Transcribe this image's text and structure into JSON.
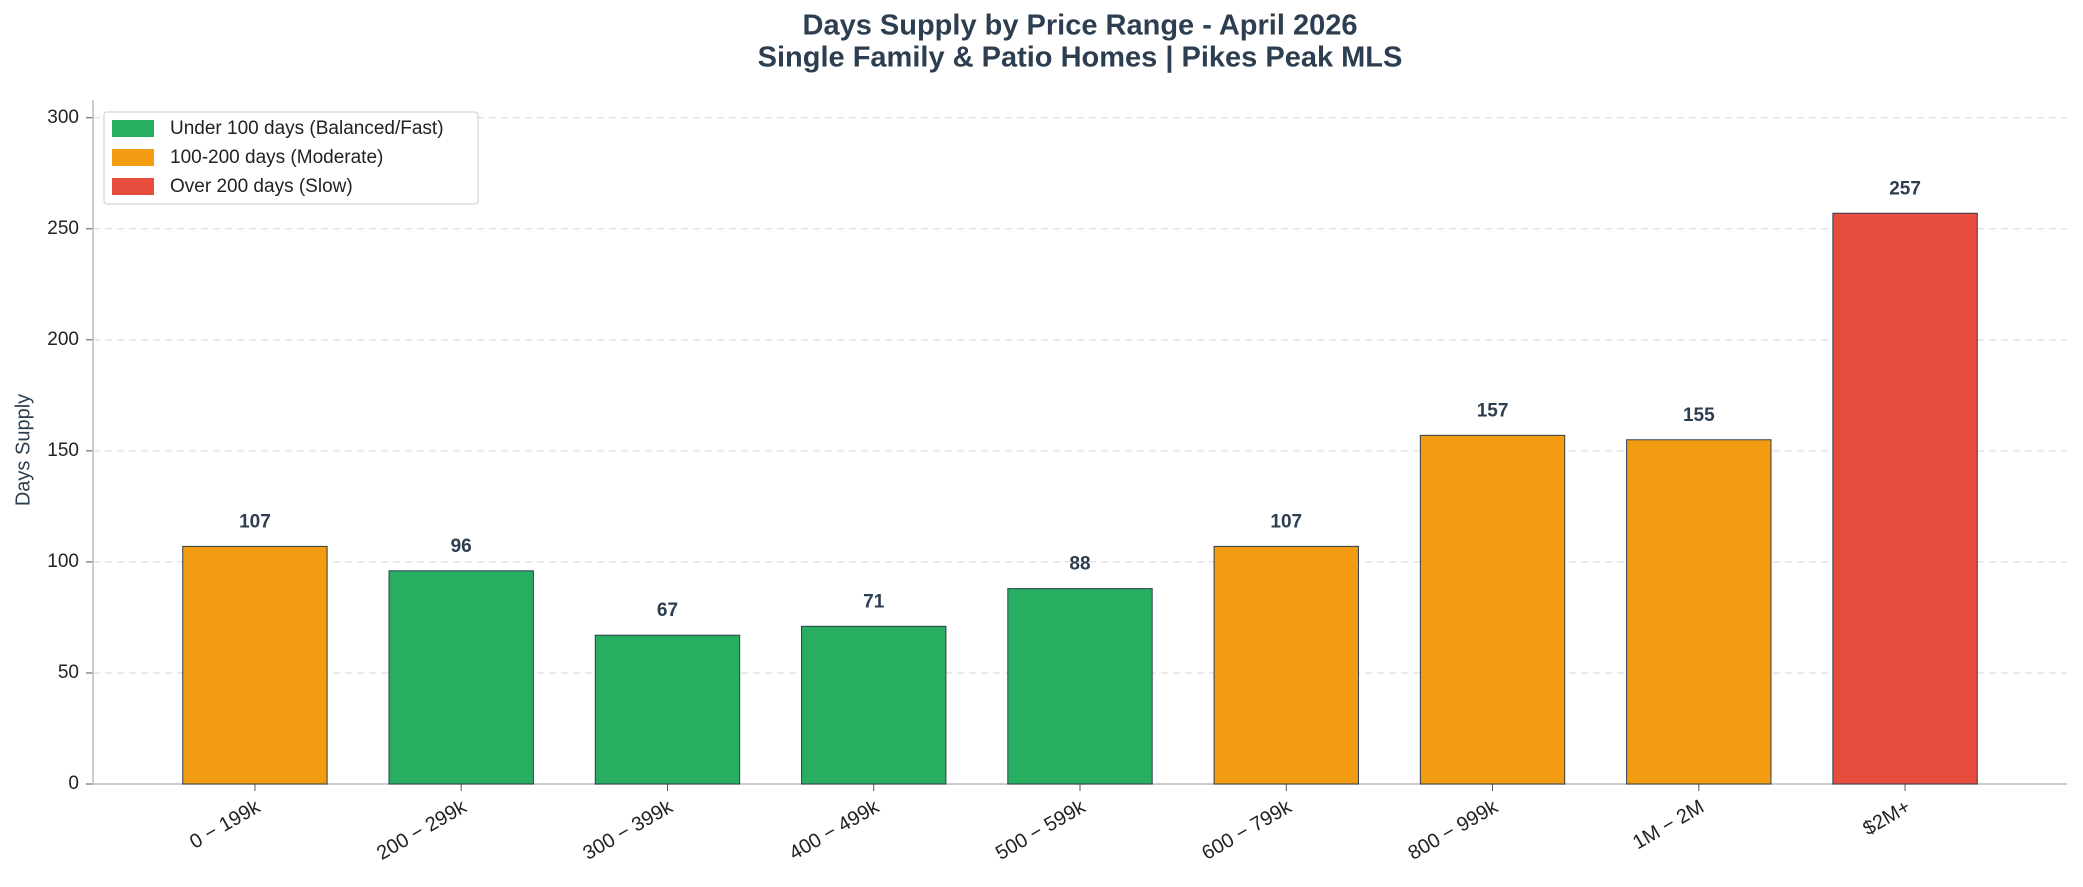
{
  "chart_data": {
    "type": "bar",
    "title": "Days Supply by Price Range - April 2026",
    "subtitle": "Single Family & Patio Homes | Pikes Peak MLS",
    "y_label": "Days Supply",
    "categories": [
      "0 − 199k",
      "200 − 299k",
      "300 − 399k",
      "400 − 499k",
      "500 − 599k",
      "600 − 799k",
      "800 − 999k",
      "1M − 2M",
      "$2M+"
    ],
    "values": [
      107,
      96,
      67,
      71,
      88,
      107,
      157,
      155,
      257
    ],
    "colors": [
      "#f39c12",
      "#27ae60",
      "#27ae60",
      "#27ae60",
      "#27ae60",
      "#f39c12",
      "#f39c12",
      "#f39c12",
      "#e74c3c"
    ],
    "legend": [
      {
        "name": "Under 100 days (Balanced/Fast)",
        "color": "#27ae60"
      },
      {
        "name": "100-200 days (Moderate)",
        "color": "#f39c12"
      },
      {
        "name": "Over 200 days (Slow)",
        "color": "#e74c3c"
      }
    ],
    "legend_position": "upper left",
    "ylim": [
      0,
      308
    ],
    "yticks": [
      0,
      50,
      100,
      150,
      200,
      250,
      300
    ],
    "grid": true
  }
}
